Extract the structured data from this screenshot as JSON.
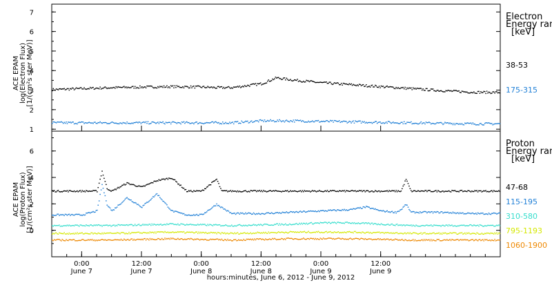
{
  "chart_data": [
    {
      "type": "scatter",
      "panel": "electron",
      "ylabel_lines": [
        "ACE EPAM",
        "log(Electron Flux)",
        "[1/(cm²s ster MeV)]"
      ],
      "ylim": [
        0.9,
        7.4
      ],
      "yticks": [
        1,
        2,
        3,
        4,
        5,
        6,
        7
      ],
      "legend_title_lines": [
        "Electron",
        "Energy ran",
        "[keV]"
      ],
      "series": [
        {
          "name": "38-53",
          "color": "#000000",
          "x": [
            0,
            6,
            12,
            18,
            24,
            30,
            33,
            36,
            39,
            42,
            45,
            48,
            54,
            60,
            66,
            72,
            78,
            84,
            90
          ],
          "y": [
            3.05,
            3.1,
            3.15,
            3.18,
            3.2,
            3.18,
            3.15,
            3.15,
            3.25,
            3.35,
            3.65,
            3.55,
            3.4,
            3.3,
            3.2,
            3.1,
            3.0,
            2.92,
            2.9
          ]
        },
        {
          "name": "175-315",
          "color": "#1f7fd6",
          "x": [
            0,
            12,
            24,
            36,
            42,
            48,
            60,
            72,
            84,
            90
          ],
          "y": [
            1.35,
            1.35,
            1.35,
            1.35,
            1.45,
            1.45,
            1.4,
            1.35,
            1.3,
            1.3
          ]
        }
      ]
    },
    {
      "type": "scatter",
      "panel": "proton",
      "ylabel_lines": [
        "ACE EPAM",
        "log(Proton Flux)",
        "[1/(cm²s ster MeV)]"
      ],
      "ylim": [
        -2.0,
        7.5
      ],
      "yticks": [
        0,
        2,
        4,
        6
      ],
      "legend_title_lines": [
        "Proton",
        "Energy ran",
        "[keV]"
      ],
      "series": [
        {
          "name": "47-68",
          "color": "#000000",
          "x": [
            0,
            6,
            9,
            10,
            11,
            12,
            15,
            18,
            21,
            24,
            27,
            30,
            33,
            34,
            36,
            42,
            48,
            54,
            60,
            66,
            70,
            71,
            72,
            78,
            84,
            90
          ],
          "y": [
            3.0,
            3.0,
            3.0,
            4.5,
            3.2,
            3.0,
            3.6,
            3.3,
            3.8,
            4.0,
            3.0,
            3.0,
            3.9,
            3.0,
            3.0,
            3.0,
            3.0,
            3.0,
            3.0,
            3.0,
            3.0,
            3.9,
            3.0,
            3.0,
            3.0,
            3.0
          ]
        },
        {
          "name": "115-195",
          "color": "#1f7fd6",
          "x": [
            0,
            6,
            9,
            10,
            11,
            12,
            15,
            18,
            21,
            24,
            27,
            30,
            33,
            36,
            42,
            48,
            54,
            60,
            63,
            66,
            69,
            70,
            71,
            72,
            78,
            84,
            90
          ],
          "y": [
            1.2,
            1.2,
            1.5,
            3.5,
            2.0,
            1.5,
            2.5,
            1.8,
            2.8,
            1.5,
            1.2,
            1.2,
            2.0,
            1.3,
            1.3,
            1.4,
            1.5,
            1.6,
            1.8,
            1.5,
            1.4,
            1.6,
            2.0,
            1.4,
            1.4,
            1.3,
            1.3
          ]
        },
        {
          "name": "310-580",
          "color": "#33ddcc",
          "x": [
            0,
            12,
            24,
            36,
            48,
            54,
            60,
            66,
            72,
            84,
            90
          ],
          "y": [
            0.4,
            0.4,
            0.5,
            0.4,
            0.5,
            0.6,
            0.6,
            0.5,
            0.4,
            0.4,
            0.4
          ]
        },
        {
          "name": "795-1193",
          "color": "#d4e800",
          "x": [
            0,
            12,
            24,
            36,
            48,
            60,
            72,
            84,
            90
          ],
          "y": [
            -0.2,
            -0.2,
            -0.1,
            -0.2,
            -0.1,
            -0.1,
            -0.2,
            -0.2,
            -0.2
          ]
        },
        {
          "name": "1060-1900",
          "color": "#ee8800",
          "x": [
            0,
            12,
            24,
            36,
            48,
            60,
            72,
            84,
            90
          ],
          "y": [
            -0.7,
            -0.7,
            -0.6,
            -0.7,
            -0.6,
            -0.6,
            -0.7,
            -0.7,
            -0.7
          ]
        }
      ]
    }
  ],
  "x_axis": {
    "ticks": [
      {
        "x": 6,
        "time": "0:00",
        "date": "June 7"
      },
      {
        "x": 18,
        "time": "12:00",
        "date": "June 7"
      },
      {
        "x": 30,
        "time": "0:00",
        "date": "June 8"
      },
      {
        "x": 42,
        "time": "12:00",
        "date": "June 8"
      },
      {
        "x": 54,
        "time": "0:00",
        "date": "June 9"
      },
      {
        "x": 66,
        "time": "12:00",
        "date": "June 9"
      }
    ],
    "xlim": [
      0,
      90
    ],
    "title": "hours:minutes, June  6, 2012 - June  9, 2012"
  }
}
